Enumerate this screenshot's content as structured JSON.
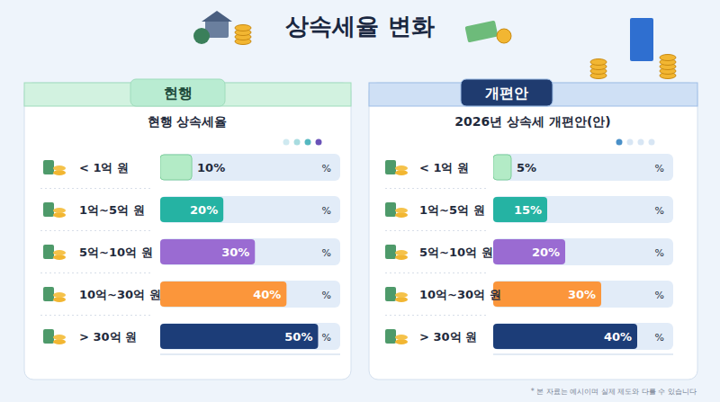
{
  "title": "상속세율 변화",
  "footnote": "* 본 자료는 예시이며 실제 제도와 다를 수 있습니다",
  "chart_data": [
    {
      "type": "bar",
      "orientation": "horizontal",
      "title": "현행",
      "subtitle": "현행 상속세율",
      "categories": [
        "< 1억 원",
        "1억~5억 원",
        "5억~10억 원",
        "10억~30억 원",
        "> 30억 원"
      ],
      "values": [
        10,
        20,
        30,
        40,
        50
      ],
      "value_labels": [
        "10%",
        "20%",
        "30%",
        "40%",
        "50%"
      ],
      "colors": [
        "#b3ebc6",
        "#25b3a3",
        "#9a6bd2",
        "#fb963b",
        "#1c3d78"
      ],
      "xlim": [
        0,
        57
      ],
      "xticks": [
        {
          "value": 57,
          "label": "%"
        }
      ],
      "data_labels": true,
      "grid": false
    },
    {
      "type": "bar",
      "orientation": "horizontal",
      "title": "개편안",
      "subtitle": "2026년 상속세 개편안(안)",
      "categories": [
        "< 1억 원",
        "1억~5억 원",
        "5억~10억 원",
        "10억~30억 원",
        "> 30억 원"
      ],
      "values": [
        5,
        15,
        20,
        30,
        40
      ],
      "value_labels": [
        "5%",
        "15%",
        "20%",
        "30%",
        "40%"
      ],
      "colors": [
        "#b3ebc6",
        "#25b3a3",
        "#9a6bd2",
        "#fb963b",
        "#1c3d78"
      ],
      "xlim": [
        0,
        50
      ],
      "xticks": [
        {
          "value": 50,
          "label": "%"
        }
      ],
      "data_labels": true,
      "grid": false
    }
  ]
}
